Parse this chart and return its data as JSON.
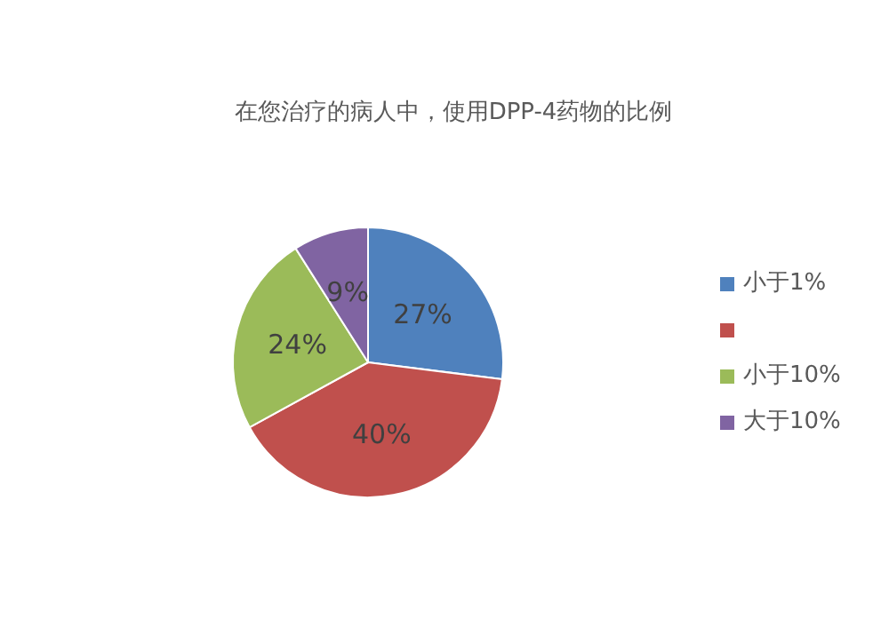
{
  "chart_data": {
    "type": "pie",
    "title": "在您治疗的病人中，使用DPP-4药物的比例",
    "categories": [
      "小于1%",
      null,
      "小于10%",
      "大于10%"
    ],
    "values": [
      27,
      40,
      24,
      9
    ],
    "colors": [
      "#4f81bd",
      "#c0504d",
      "#9bbb59",
      "#8064a2"
    ],
    "value_labels": [
      "27%",
      "40%",
      "24%",
      "9%"
    ],
    "legend": "right"
  }
}
